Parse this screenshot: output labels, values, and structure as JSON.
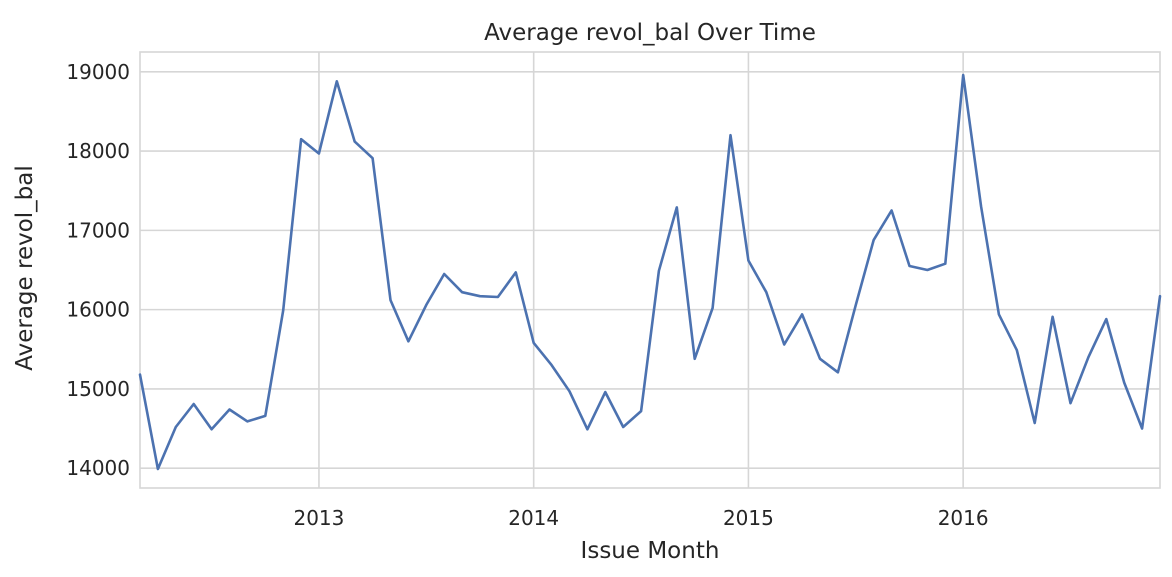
{
  "chart_data": {
    "type": "line",
    "title": "Average revol_bal Over Time",
    "xlabel": "Issue Month",
    "ylabel": "Average revol_bal",
    "x_ticks": [
      "2013",
      "2014",
      "2015",
      "2016"
    ],
    "y_ticks": [
      "14000",
      "15000",
      "16000",
      "17000",
      "18000",
      "19000"
    ],
    "ylim": [
      13750,
      19250
    ],
    "xlim": [
      "2012-03",
      "2016-12"
    ],
    "grid": true,
    "colors": {
      "series": "#4c72b0",
      "grid": "#d6d6d6",
      "text": "#262626"
    },
    "series": [
      {
        "x": [
          "2012-03",
          "2012-04",
          "2012-05",
          "2012-06",
          "2012-07",
          "2012-08",
          "2012-09",
          "2012-10",
          "2012-11",
          "2012-12",
          "2013-01",
          "2013-02",
          "2013-03",
          "2013-04",
          "2013-05",
          "2013-06",
          "2013-07",
          "2013-08",
          "2013-09",
          "2013-10",
          "2013-11",
          "2013-12",
          "2014-01",
          "2014-02",
          "2014-03",
          "2014-04",
          "2014-05",
          "2014-06",
          "2014-07",
          "2014-08",
          "2014-09",
          "2014-10",
          "2014-11",
          "2014-12",
          "2015-01",
          "2015-02",
          "2015-03",
          "2015-04",
          "2015-05",
          "2015-06",
          "2015-07",
          "2015-08",
          "2015-09",
          "2015-10",
          "2015-11",
          "2015-12",
          "2016-01",
          "2016-02",
          "2016-03",
          "2016-04",
          "2016-05",
          "2016-06",
          "2016-07",
          "2016-08",
          "2016-09",
          "2016-10",
          "2016-11",
          "2016-12"
        ],
        "values": [
          15180,
          13990,
          14520,
          14810,
          14490,
          14740,
          14590,
          14660,
          15990,
          18150,
          17970,
          18880,
          18120,
          17910,
          16120,
          15600,
          16060,
          16450,
          16220,
          16170,
          16160,
          16470,
          15580,
          15300,
          14970,
          14490,
          14960,
          14520,
          14720,
          16490,
          17290,
          15380,
          16020,
          18200,
          16620,
          16220,
          15560,
          15940,
          15380,
          15210,
          16060,
          16880,
          17250,
          16550,
          16500,
          16580,
          18960,
          17300,
          15940,
          15490,
          14570,
          15910,
          14820,
          15400,
          15880,
          15080,
          14500,
          16170
        ]
      }
    ]
  }
}
